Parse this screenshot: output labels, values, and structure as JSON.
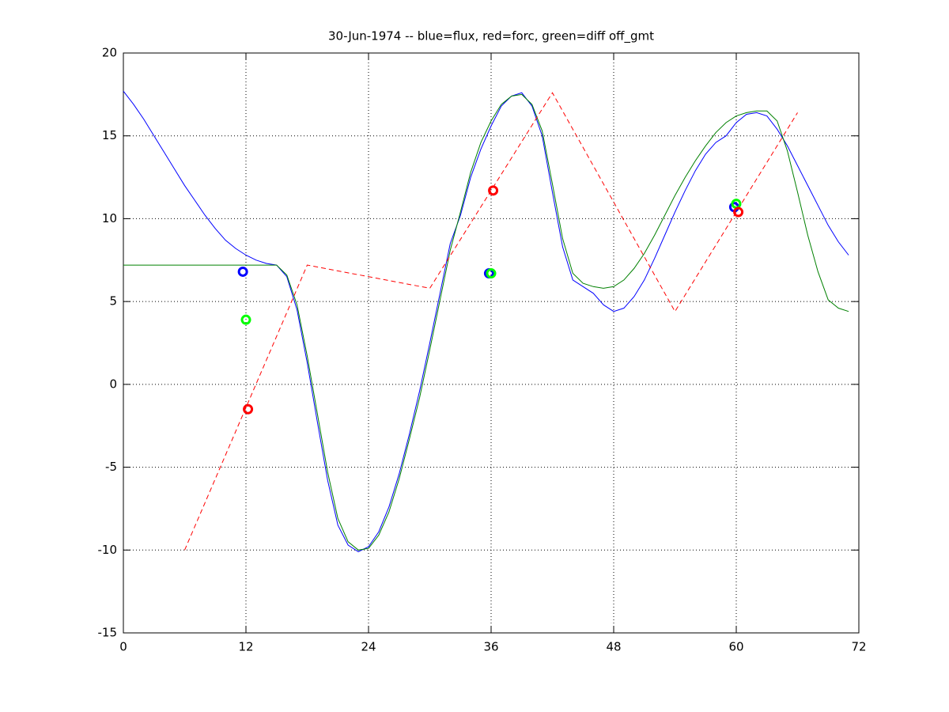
{
  "chart_data": {
    "type": "line",
    "title": "30-Jun-1974 -- blue=flux, red=forc, green=diff off_gmt",
    "xlim": [
      0,
      72
    ],
    "xticks": [
      0,
      12,
      24,
      36,
      48,
      60,
      72
    ],
    "ylim": [
      -15,
      20
    ],
    "yticks": [
      -15,
      -10,
      -5,
      0,
      5,
      10,
      15,
      20
    ],
    "grid": true,
    "series": [
      {
        "color": "#0000ff",
        "style": "solid",
        "x": [
          0,
          1,
          2,
          3,
          4,
          5,
          6,
          7,
          8,
          9,
          10,
          11,
          12,
          13,
          14,
          15,
          16,
          17,
          18,
          19,
          20,
          21,
          22,
          23,
          24,
          25,
          26,
          27,
          28,
          29,
          30,
          31,
          32,
          33,
          34,
          35,
          36,
          37,
          38,
          39,
          40,
          41,
          42,
          43,
          44,
          45,
          46,
          47,
          48,
          49,
          50,
          51,
          52,
          53,
          54,
          55,
          56,
          57,
          58,
          59,
          60,
          61,
          62,
          63,
          64,
          65,
          66,
          67,
          68,
          69,
          70,
          71
        ],
        "values": [
          17.7,
          16.9,
          16.0,
          15.0,
          14.0,
          13.0,
          12.0,
          11.1,
          10.2,
          9.4,
          8.7,
          8.2,
          7.8,
          7.5,
          7.3,
          7.2,
          6.5,
          4.5,
          1.3,
          -2.3,
          -5.8,
          -8.5,
          -9.7,
          -10.1,
          -9.8,
          -8.9,
          -7.4,
          -5.4,
          -3.0,
          -0.4,
          2.5,
          5.5,
          8.5,
          10.2,
          12.5,
          14.2,
          15.6,
          16.8,
          17.4,
          17.6,
          16.8,
          15.0,
          11.6,
          8.3,
          6.3,
          5.9,
          5.5,
          4.8,
          4.4,
          4.6,
          5.3,
          6.3,
          7.6,
          9.0,
          10.4,
          11.7,
          12.9,
          13.9,
          14.6,
          15.0,
          15.8,
          16.3,
          16.4,
          16.2,
          15.4,
          14.4,
          13.2,
          12.0,
          10.8,
          9.6,
          8.6,
          7.8
        ]
      },
      {
        "color": "#008000",
        "style": "solid",
        "x": [
          0,
          1,
          2,
          3,
          4,
          5,
          6,
          7,
          8,
          9,
          10,
          11,
          12,
          13,
          14,
          15,
          16,
          17,
          18,
          19,
          20,
          21,
          22,
          23,
          24,
          25,
          26,
          27,
          28,
          29,
          30,
          31,
          32,
          33,
          34,
          35,
          36,
          37,
          38,
          39,
          40,
          41,
          42,
          43,
          44,
          45,
          46,
          47,
          48,
          49,
          50,
          51,
          52,
          53,
          54,
          55,
          56,
          57,
          58,
          59,
          60,
          61,
          62,
          63,
          64,
          65,
          66,
          67,
          68,
          69,
          70,
          71
        ],
        "values": [
          7.2,
          7.2,
          7.2,
          7.2,
          7.2,
          7.2,
          7.2,
          7.2,
          7.2,
          7.2,
          7.2,
          7.2,
          7.2,
          7.2,
          7.2,
          7.2,
          6.6,
          4.8,
          1.7,
          -1.8,
          -5.3,
          -8.1,
          -9.5,
          -10.0,
          -9.9,
          -9.1,
          -7.7,
          -5.7,
          -3.3,
          -0.8,
          2.1,
          5.1,
          8.1,
          10.4,
          12.8,
          14.6,
          15.9,
          16.9,
          17.4,
          17.5,
          16.9,
          15.3,
          12.1,
          8.8,
          6.7,
          6.1,
          5.9,
          5.8,
          5.9,
          6.3,
          7.0,
          7.9,
          9.0,
          10.2,
          11.4,
          12.5,
          13.5,
          14.4,
          15.2,
          15.8,
          16.2,
          16.4,
          16.5,
          16.5,
          15.9,
          14.1,
          11.6,
          9.0,
          6.8,
          5.1,
          4.6,
          4.4
        ]
      },
      {
        "color": "#ff0000",
        "style": "dashed",
        "x": [
          6,
          18,
          30,
          42,
          54,
          66
        ],
        "values": [
          -10,
          7.2,
          5.8,
          17.6,
          4.4,
          16.4
        ]
      },
      {
        "color": "#0000ff",
        "style": "marker",
        "x": [
          11.7,
          35.8,
          59.8
        ],
        "values": [
          6.8,
          6.7,
          10.7
        ]
      },
      {
        "color": "#00ff00",
        "style": "marker",
        "x": [
          12,
          36,
          60
        ],
        "values": [
          3.9,
          6.7,
          10.9
        ]
      },
      {
        "color": "#ff0000",
        "style": "marker",
        "x": [
          12.2,
          36.2,
          60.2
        ],
        "values": [
          -1.5,
          11.7,
          10.4
        ]
      }
    ]
  }
}
